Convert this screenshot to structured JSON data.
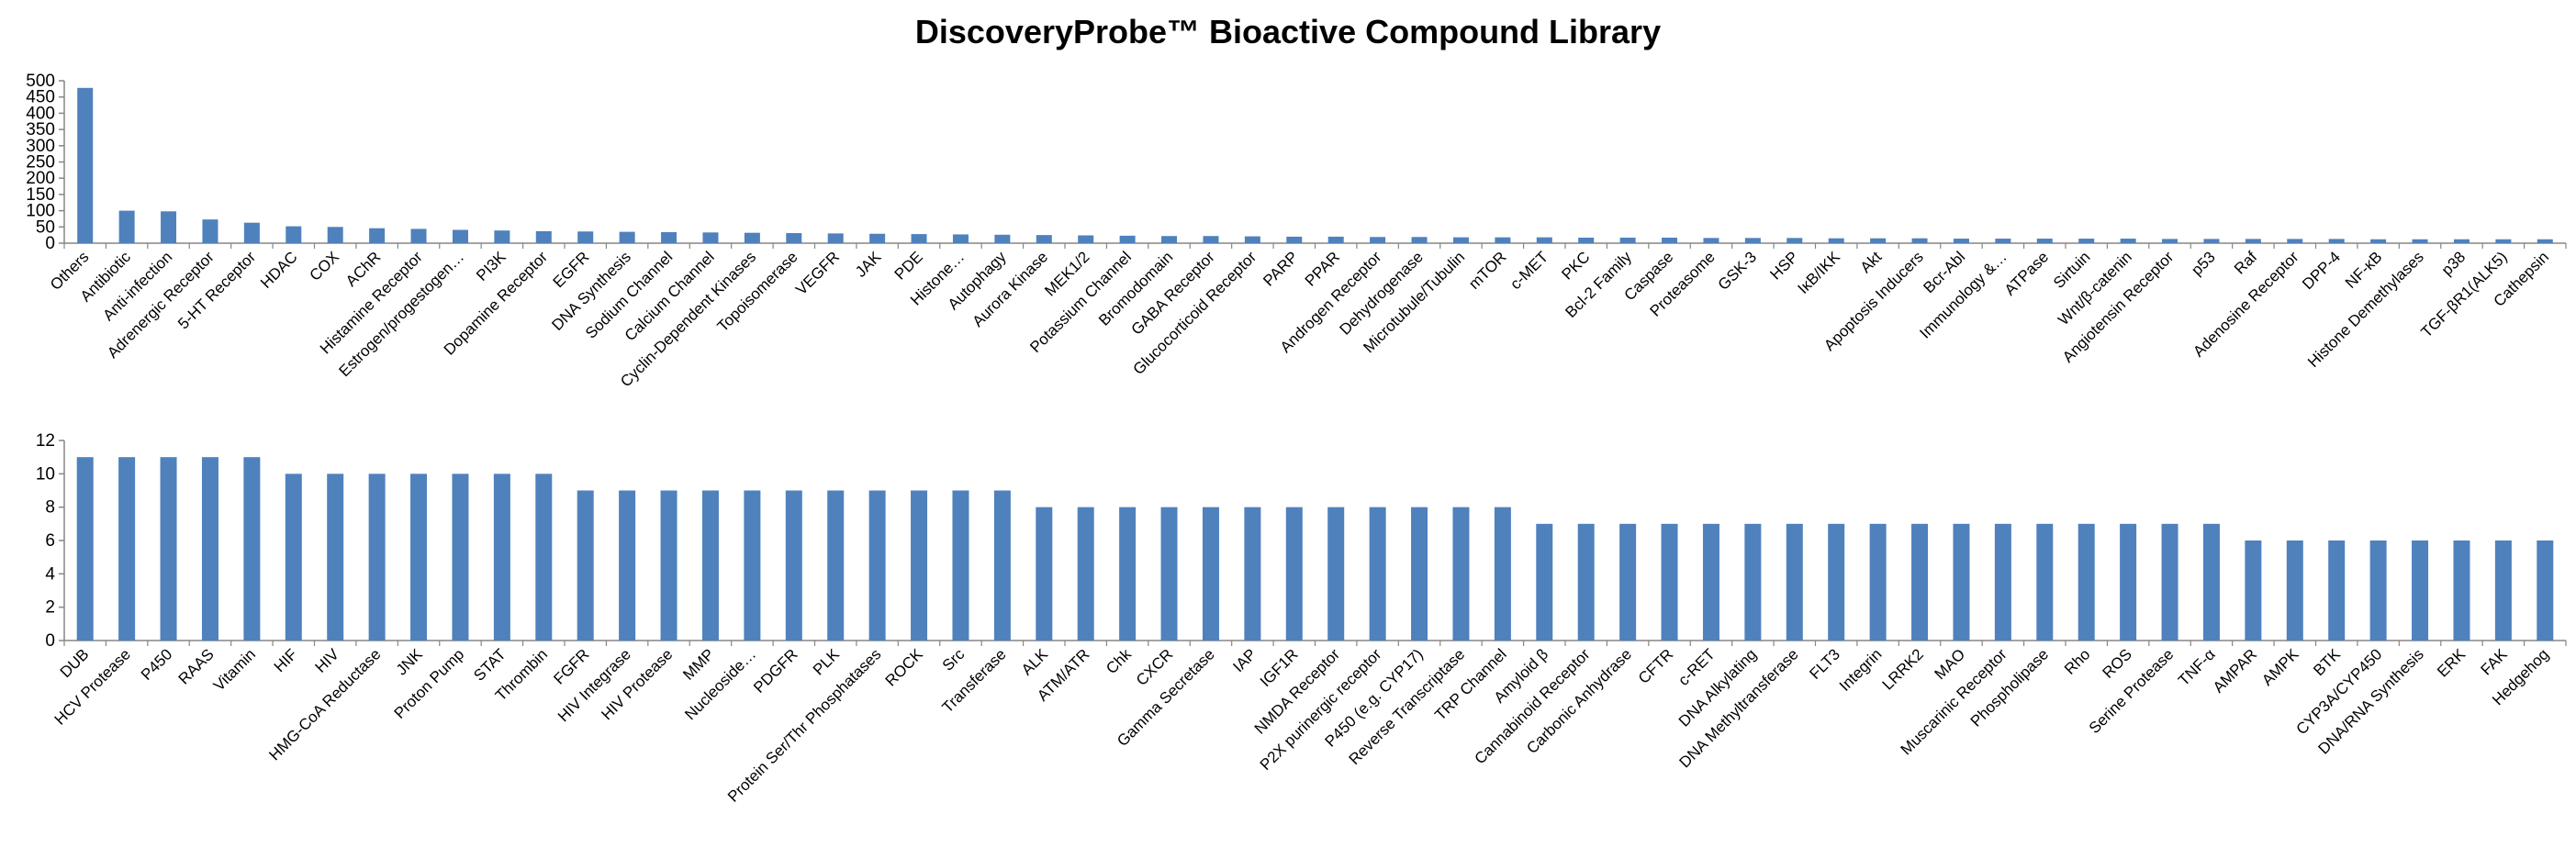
{
  "title": "DiscoveryProbe™ Bioactive Compound Library",
  "colors": {
    "bar": "#4F81BD",
    "axis": "#868686"
  },
  "chart_data": [
    {
      "type": "bar",
      "ylim": [
        0,
        500
      ],
      "yticks": [
        0,
        50,
        100,
        150,
        200,
        250,
        300,
        350,
        400,
        450,
        500
      ],
      "grid": false,
      "legend": "none",
      "categories": [
        "Others",
        "Antibiotic",
        "Anti-infection",
        "Adrenergic Receptor",
        "5-HT Receptor",
        "HDAC",
        "COX",
        "AChR",
        "Histamine Receptor",
        "Estrogen/progestogen…",
        "PI3K",
        "Dopamine Receptor",
        "EGFR",
        "DNA Synthesis",
        "Sodium Channel",
        "Calcium Channel",
        "Cyclin-Dependent Kinases",
        "Topoisomerase",
        "VEGFR",
        "JAK",
        "PDE",
        "Histone…",
        "Autophagy",
        "Aurora Kinase",
        "MEK1/2",
        "Potassium Channel",
        "Bromodomain",
        "GABA Receptor",
        "Glucocorticoid Receptor",
        "PARP",
        "PPAR",
        "Androgen Receptor",
        "Dehydrogenase",
        "Microtubule/Tubulin",
        "mTOR",
        "c-MET",
        "PKC",
        "Bcl-2 Family",
        "Caspase",
        "Proteasome",
        "GSK-3",
        "HSP",
        "IκB/IKK",
        "Akt",
        "Apoptosis Inducers",
        "Bcr-Abl",
        "Immunology &…",
        "ATPase",
        "Sirtuin",
        "Wnt/β-catenin",
        "Angiotensin Receptor",
        "p53",
        "Raf",
        "Adenosine Receptor",
        "DPP-4",
        "NF-κB",
        "Histone Demethylases",
        "p38",
        "TGF-βR1(ALK5)",
        "Cathepsin"
      ],
      "values": [
        478,
        100,
        98,
        73,
        63,
        52,
        50,
        46,
        44,
        41,
        39,
        37,
        36,
        35,
        34,
        33,
        32,
        31,
        30,
        29,
        28,
        27,
        26,
        25,
        24,
        23,
        22,
        22,
        21,
        20,
        20,
        19,
        19,
        18,
        18,
        18,
        17,
        17,
        17,
        16,
        16,
        16,
        15,
        15,
        15,
        14,
        14,
        14,
        14,
        14,
        13,
        13,
        13,
        13,
        13,
        12,
        12,
        12,
        12,
        12
      ]
    },
    {
      "type": "bar",
      "ylim": [
        0,
        12
      ],
      "yticks": [
        0,
        2,
        4,
        6,
        8,
        10,
        12
      ],
      "grid": false,
      "legend": "none",
      "categories": [
        "DUB",
        "HCV Protease",
        "P450",
        "RAAS",
        "Vitamin",
        "HIF",
        "HIV",
        "HMG-CoA Reductase",
        "JNK",
        "Proton Pump",
        "STAT",
        "Thrombin",
        "FGFR",
        "HIV Integrase",
        "HIV Protease",
        "MMP",
        "Nucleoside…",
        "PDGFR",
        "PLK",
        "Protein Ser/Thr Phosphatases",
        "ROCK",
        "Src",
        "Transferase",
        "ALK",
        "ATM/ATR",
        "Chk",
        "CXCR",
        "Gamma Secretase",
        "IAP",
        "IGF1R",
        "NMDA Receptor",
        "P2X purinergic receptor",
        "P450 (e.g. CYP17)",
        "Reverse Transcriptase",
        "TRP Channel",
        "Amyloid β",
        "Cannabinoid Receptor",
        "Carbonic Anhydrase",
        "CFTR",
        "c-RET",
        "DNA Alkylating",
        "DNA Methyltransferase",
        "FLT3",
        "Integrin",
        "LRRK2",
        "MAO",
        "Muscarinic Receptor",
        "Phospholipase",
        "Rho",
        "ROS",
        "Serine Protease",
        "TNF-α",
        "AMPAR",
        "AMPK",
        "BTK",
        "CYP3A/CYP450",
        "DNA/RNA Synthesis",
        "ERK",
        "FAK",
        "Hedgehog"
      ],
      "values": [
        11,
        11,
        11,
        11,
        11,
        10,
        10,
        10,
        10,
        10,
        10,
        10,
        9,
        9,
        9,
        9,
        9,
        9,
        9,
        9,
        9,
        9,
        9,
        8,
        8,
        8,
        8,
        8,
        8,
        8,
        8,
        8,
        8,
        8,
        8,
        7,
        7,
        7,
        7,
        7,
        7,
        7,
        7,
        7,
        7,
        7,
        7,
        7,
        7,
        7,
        7,
        7,
        6,
        6,
        6,
        6,
        6,
        6,
        6,
        6
      ]
    }
  ]
}
